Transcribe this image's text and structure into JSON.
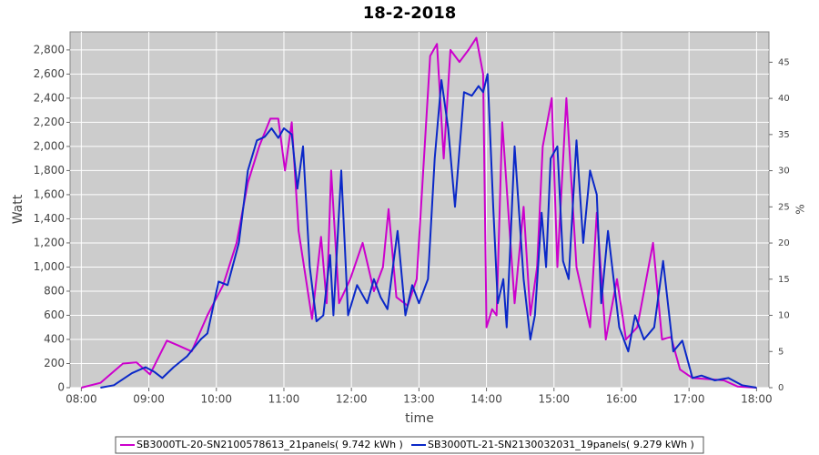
{
  "chart_data": {
    "type": "line",
    "title": "18-2-2018",
    "xlabel": "time",
    "ylabel": "Watt",
    "y2label": "%",
    "xlim": [
      "07:50",
      "18:11"
    ],
    "xticks": [
      "08:00",
      "09:00",
      "10:00",
      "11:00",
      "12:00",
      "13:00",
      "14:00",
      "15:00",
      "16:00",
      "17:00",
      "18:00"
    ],
    "ylim": [
      0,
      2950
    ],
    "yticks": [
      0,
      200,
      400,
      600,
      800,
      {
        "value": 1000,
        "label": "1,000"
      },
      {
        "value": 1200,
        "label": "1,200"
      },
      {
        "value": 1400,
        "label": "1,400"
      },
      {
        "value": 1600,
        "label": "1,600"
      },
      {
        "value": 1800,
        "label": "1,800"
      },
      {
        "value": 2000,
        "label": "2,000"
      },
      {
        "value": 2200,
        "label": "2,200"
      },
      {
        "value": 2400,
        "label": "2,400"
      },
      {
        "value": 2600,
        "label": "2,600"
      },
      {
        "value": 2800,
        "label": "2,800"
      }
    ],
    "y2lim": [
      0,
      49.2
    ],
    "y2ticks": [
      0,
      5,
      10,
      15,
      20,
      25,
      30,
      35,
      40,
      45
    ],
    "grid": true,
    "series": [
      {
        "name": "SB3000TL-20-SN2100578613_21panels( 9.742 kWh )",
        "color": "#cc00cc",
        "x": [
          "08:00",
          "08:17",
          "08:37",
          "08:49",
          "09:01",
          "09:16",
          "09:26",
          "09:38",
          "09:52",
          "10:06",
          "10:18",
          "10:28",
          "10:38",
          "10:48",
          "10:55",
          "11:01",
          "11:07",
          "11:13",
          "11:25",
          "11:33",
          "11:38",
          "11:42",
          "11:49",
          "11:59",
          "12:10",
          "12:20",
          "12:28",
          "12:33",
          "12:40",
          "12:50",
          "12:58",
          "13:10",
          "13:16",
          "13:22",
          "13:28",
          "13:36",
          "13:44",
          "13:51",
          "13:57",
          "14:00",
          "14:05",
          "14:09",
          "14:14",
          "14:25",
          "14:33",
          "14:39",
          "14:45",
          "14:50",
          "14:58",
          "15:03",
          "15:11",
          "15:20",
          "15:32",
          "15:38",
          "15:46",
          "15:56",
          "16:04",
          "16:14",
          "16:28",
          "16:36",
          "16:44",
          "16:52",
          "17:03",
          "17:19",
          "17:31",
          "17:43",
          "18:00"
        ],
        "values": [
          0,
          40,
          200,
          210,
          110,
          390,
          350,
          300,
          600,
          850,
          1200,
          1700,
          2000,
          2230,
          2230,
          1800,
          2200,
          1300,
          570,
          1250,
          700,
          1800,
          700,
          900,
          1200,
          800,
          1000,
          1480,
          750,
          680,
          900,
          2750,
          2850,
          1900,
          2800,
          2700,
          2800,
          2900,
          2600,
          500,
          650,
          600,
          2200,
          700,
          1500,
          600,
          1000,
          2000,
          2400,
          1000,
          2400,
          1000,
          500,
          1450,
          400,
          900,
          400,
          500,
          1200,
          400,
          420,
          150,
          80,
          70,
          60,
          10,
          0
        ]
      },
      {
        "name": "SB3000TL-21-SN2130032031_19panels( 9.279 kWh )",
        "color": "#0a28c8",
        "x": [
          "08:17",
          "08:29",
          "08:45",
          "08:57",
          "09:05",
          "09:12",
          "09:22",
          "09:34",
          "09:46",
          "09:52",
          "10:02",
          "10:10",
          "10:20",
          "10:28",
          "10:36",
          "10:43",
          "10:49",
          "10:55",
          "11:00",
          "11:07",
          "11:12",
          "11:17",
          "11:23",
          "11:29",
          "11:35",
          "11:41",
          "11:44",
          "11:51",
          "11:57",
          "12:05",
          "12:14",
          "12:20",
          "12:26",
          "12:32",
          "12:41",
          "12:48",
          "12:54",
          "13:00",
          "13:08",
          "13:14",
          "13:20",
          "13:26",
          "13:32",
          "13:40",
          "13:47",
          "13:53",
          "13:57",
          "14:01",
          "14:06",
          "14:10",
          "14:15",
          "14:18",
          "14:25",
          "14:33",
          "14:39",
          "14:43",
          "14:49",
          "14:53",
          "14:57",
          "15:03",
          "15:08",
          "15:13",
          "15:20",
          "15:26",
          "15:32",
          "15:38",
          "15:42",
          "15:48",
          "15:58",
          "16:06",
          "16:12",
          "16:20",
          "16:29",
          "16:37",
          "16:46",
          "16:54",
          "17:03",
          "17:11",
          "17:23",
          "17:35",
          "17:47",
          "18:00"
        ],
        "values": [
          0,
          20,
          120,
          170,
          130,
          80,
          170,
          260,
          400,
          450,
          880,
          850,
          1200,
          1800,
          2050,
          2080,
          2150,
          2070,
          2150,
          2100,
          1650,
          2000,
          1000,
          550,
          600,
          1100,
          600,
          1800,
          600,
          850,
          700,
          900,
          750,
          650,
          1300,
          600,
          850,
          700,
          900,
          1900,
          2550,
          2150,
          1500,
          2450,
          2420,
          2500,
          2450,
          2600,
          1500,
          700,
          900,
          500,
          2000,
          900,
          400,
          600,
          1450,
          1000,
          1900,
          2000,
          1050,
          900,
          2050,
          1200,
          1800,
          1600,
          700,
          1300,
          500,
          300,
          600,
          400,
          500,
          1050,
          300,
          390,
          80,
          100,
          60,
          80,
          20,
          0
        ]
      }
    ]
  }
}
